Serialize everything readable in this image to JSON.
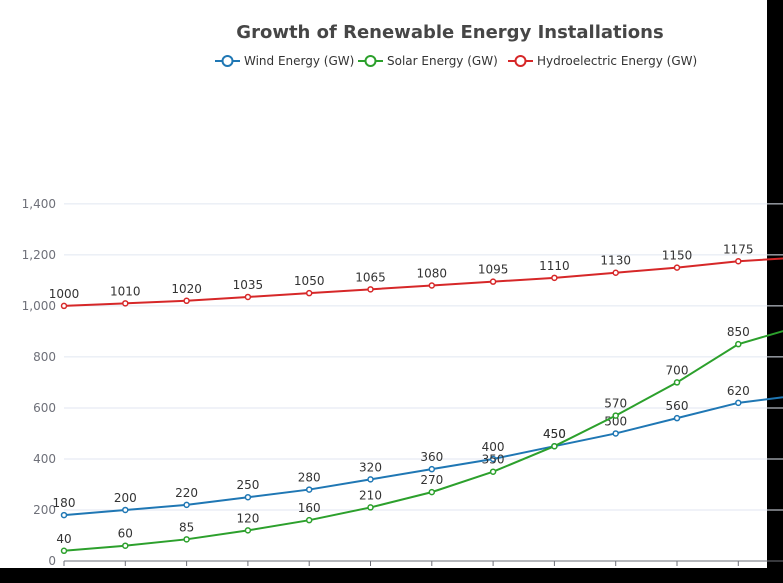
{
  "chart_data": {
    "type": "line",
    "title": "Growth of Renewable Energy Installations",
    "xlabel": "",
    "ylabel": "",
    "ylim": [
      0,
      1400
    ],
    "yticks": [
      0,
      200,
      400,
      600,
      800,
      1000,
      1200,
      1400
    ],
    "ytick_labels": [
      "0",
      "200",
      "400",
      "600",
      "800",
      "1,000",
      "1,200",
      "1,400"
    ],
    "grid": true,
    "legend_position": "top",
    "x": [
      1,
      2,
      3,
      4,
      5,
      6,
      7,
      8,
      9,
      10,
      11,
      12,
      13
    ],
    "series": [
      {
        "name": "Wind Energy (GW)",
        "color": "#1f77b4",
        "values": [
          180,
          200,
          220,
          250,
          280,
          320,
          360,
          400,
          450,
          500,
          560,
          620,
          650
        ]
      },
      {
        "name": "Solar Energy (GW)",
        "color": "#2ca02c",
        "values": [
          40,
          60,
          85,
          120,
          160,
          210,
          270,
          350,
          450,
          570,
          700,
          850,
          920
        ]
      },
      {
        "name": "Hydroelectric Energy (GW)",
        "color": "#d62728",
        "values": [
          1000,
          1010,
          1020,
          1035,
          1050,
          1065,
          1080,
          1095,
          1110,
          1130,
          1150,
          1175,
          1190
        ]
      }
    ],
    "labeled_points": 12
  }
}
